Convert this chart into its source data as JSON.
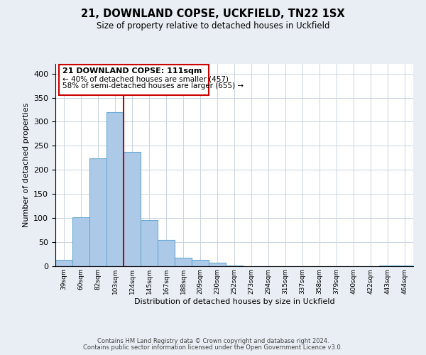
{
  "title": "21, DOWNLAND COPSE, UCKFIELD, TN22 1SX",
  "subtitle": "Size of property relative to detached houses in Uckfield",
  "xlabel": "Distribution of detached houses by size in Uckfield",
  "ylabel": "Number of detached properties",
  "bar_labels": [
    "39sqm",
    "60sqm",
    "82sqm",
    "103sqm",
    "124sqm",
    "145sqm",
    "167sqm",
    "188sqm",
    "209sqm",
    "230sqm",
    "252sqm",
    "273sqm",
    "294sqm",
    "315sqm",
    "337sqm",
    "358sqm",
    "379sqm",
    "400sqm",
    "422sqm",
    "443sqm",
    "464sqm"
  ],
  "bar_values": [
    14,
    102,
    224,
    320,
    237,
    96,
    54,
    17,
    14,
    8,
    1,
    0,
    0,
    0,
    0,
    0,
    0,
    0,
    0,
    2,
    2
  ],
  "bar_color": "#adc9e8",
  "bar_edgecolor": "#6aaad4",
  "vline_x": 3.5,
  "vline_color": "#cc0000",
  "ylim": [
    0,
    420
  ],
  "yticks": [
    0,
    50,
    100,
    150,
    200,
    250,
    300,
    350,
    400
  ],
  "annotation_title": "21 DOWNLAND COPSE: 111sqm",
  "annotation_line1": "← 40% of detached houses are smaller (457)",
  "annotation_line2": "58% of semi-detached houses are larger (655) →",
  "footnote1": "Contains HM Land Registry data © Crown copyright and database right 2024.",
  "footnote2": "Contains public sector information licensed under the Open Government Licence v3.0.",
  "bg_color": "#e8eef4",
  "plot_bg_color": "#ffffff",
  "grid_color": "#c8d4e0"
}
